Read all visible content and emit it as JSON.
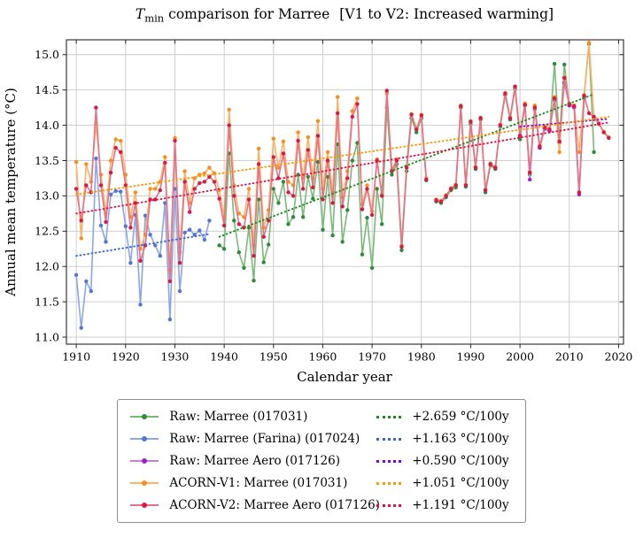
{
  "title": {
    "t_symbol": "T",
    "t_sub": "min",
    "main": " comparison for Marree",
    "bracket": "[V1 to V2: Increased warming]"
  },
  "chart_data": {
    "type": "line",
    "title": "T_min comparison for Marree  [V1 to V2: Increased warming]",
    "xlabel": "Calendar year",
    "ylabel": "Annual mean temperature (°C)",
    "xlim": [
      1908,
      2021
    ],
    "ylim": [
      10.9,
      15.21
    ],
    "xticks": [
      1910,
      1920,
      1930,
      1940,
      1950,
      1960,
      1970,
      1980,
      1990,
      2000,
      2010,
      2020
    ],
    "yticks": [
      11.0,
      11.5,
      12.0,
      12.5,
      13.0,
      13.5,
      14.0,
      14.5,
      15.0
    ],
    "grid": true,
    "grid_color": "#c9c9c9",
    "legend_position": "below-center",
    "series": [
      {
        "name": "raw-marree",
        "label": "Raw: Marree (017031)",
        "line_color": "#79ba79",
        "marker_color": "#2e8b3a",
        "trend_color": "#1f8b1f",
        "trend_label": "+2.659 °C/100y",
        "trend": {
          "x": [
            1939,
            2015
          ],
          "y": [
            12.42,
            14.44
          ]
        },
        "start_year": 1939,
        "values": [
          12.3,
          12.25,
          13.6,
          12.65,
          12.2,
          11.98,
          12.55,
          11.8,
          12.95,
          12.06,
          12.31,
          13.1,
          12.9,
          13.2,
          12.6,
          12.7,
          13.3,
          12.7,
          13.27,
          12.96,
          13.48,
          12.52,
          13.27,
          12.44,
          13.73,
          12.35,
          12.8,
          13.5,
          13.75,
          12.17,
          12.69,
          11.98,
          13.1,
          12.6,
          14.25,
          13.3,
          13.45,
          12.23,
          13.35,
          14.1,
          13.9,
          14.1,
          13.22,
          null,
          12.92,
          12.9,
          12.98,
          13.08,
          13.12,
          14.25,
          13.13,
          14.02,
          13.38,
          14.08,
          13.05,
          13.43,
          13.38,
          13.98,
          14.43,
          14.08,
          14.52,
          13.8,
          14.28,
          13.3,
          14.22,
          13.68,
          13.95,
          13.92,
          14.87,
          13.78,
          14.86,
          14.28,
          14.25,
          13.05,
          14.4,
          15.15,
          13.62
        ]
      },
      {
        "name": "raw-farina",
        "label": "Raw: Marree (Farina) (017024)",
        "line_color": "#8aa5e8",
        "marker_color": "#5276d8",
        "trend_color": "#3a62d8",
        "trend_label": "+1.163 °C/100y",
        "trend": {
          "x": [
            1910,
            1937
          ],
          "y": [
            12.15,
            12.46
          ]
        },
        "start_year": 1910,
        "values": [
          11.88,
          11.13,
          11.79,
          11.65,
          13.53,
          12.58,
          12.35,
          13.02,
          13.07,
          13.06,
          12.57,
          12.05,
          12.73,
          11.46,
          12.72,
          12.45,
          12.3,
          12.15,
          12.9,
          11.25,
          13.1,
          11.65,
          12.48,
          12.52,
          12.45,
          12.51,
          12.38,
          12.65
        ]
      },
      {
        "name": "raw-marree-aero",
        "label": "Raw: Marree Aero (017126)",
        "line_color": "#c27fe0",
        "marker_color": "#9a1fd0",
        "trend_color": "#8c00cc",
        "trend_label": "+0.590 °C/100y",
        "trend": {
          "x": [
            2000,
            2018
          ],
          "y": [
            13.98,
            14.09
          ]
        },
        "start_year": 2000,
        "values": [
          13.85,
          14.3,
          13.23,
          14.25,
          13.68,
          13.95,
          13.92,
          14.35,
          13.75,
          14.6,
          14.28,
          14.25,
          13.02,
          14.38
        ]
      },
      {
        "name": "acorn-v1-marree",
        "label": "ACORN-V1: Marree (017031)",
        "line_color": "#ffb266",
        "marker_color": "#ff8c1a",
        "trend_color": "#ff9500",
        "trend_label": "+1.051 °C/100y",
        "trend": {
          "x": [
            1910,
            2018
          ],
          "y": [
            13.02,
            14.12
          ]
        },
        "start_year": 1910,
        "values": [
          13.48,
          12.4,
          13.45,
          13.2,
          14.03,
          13.3,
          12.75,
          13.5,
          13.8,
          13.78,
          13.3,
          12.7,
          13.05,
          12.25,
          12.45,
          13.1,
          13.1,
          13.2,
          13.55,
          11.95,
          13.82,
          12.2,
          13.35,
          12.9,
          13.25,
          13.3,
          13.32,
          13.4,
          13.32,
          13.08,
          12.7,
          14.22,
          13.15,
          12.75,
          12.7,
          13.1,
          12.3,
          13.67,
          12.55,
          12.8,
          13.81,
          13.4,
          13.77,
          13.2,
          13.15,
          13.9,
          13.25,
          13.83,
          13.25,
          14.06,
          13.1,
          13.62,
          13.05,
          14.4,
          12.98,
          13.35,
          14.2,
          14.38,
          12.88,
          13.15,
          12.78,
          13.52,
          13.02,
          14.45,
          13.37,
          13.52,
          12.3,
          13.42,
          14.16,
          13.95,
          14.15,
          13.25,
          null,
          12.95,
          12.93,
          13.01,
          13.11,
          13.16,
          14.28,
          13.16,
          14.06,
          13.41,
          14.11,
          13.09,
          13.46,
          13.41,
          14.01,
          14.46,
          14.11,
          14.55,
          13.86,
          14.31,
          13.34,
          14.28,
          13.71,
          13.98,
          13.95,
          14.4,
          13.62,
          14.68,
          14.31,
          14.28,
          13.62,
          14.43,
          15.17,
          14.12,
          14.03,
          13.91,
          13.83
        ]
      },
      {
        "name": "acorn-v2-marree-aero",
        "label": "ACORN-V2: Marree Aero (017126)",
        "line_color": "#e87089",
        "marker_color": "#dc1745",
        "trend_color": "#e01245",
        "trend_label": "+1.191 °C/100y",
        "trend": {
          "x": [
            1910,
            2018
          ],
          "y": [
            12.75,
            14.04
          ]
        },
        "start_year": 1910,
        "values": [
          13.1,
          12.65,
          13.15,
          13.05,
          14.25,
          13.15,
          12.63,
          13.33,
          13.68,
          13.62,
          13.15,
          12.55,
          12.9,
          12.08,
          12.3,
          12.95,
          12.95,
          13.08,
          13.47,
          11.79,
          13.78,
          12.05,
          13.2,
          12.77,
          13.1,
          13.18,
          13.2,
          13.27,
          13.2,
          12.96,
          12.58,
          14.0,
          13.0,
          12.6,
          12.55,
          12.95,
          12.15,
          13.45,
          12.42,
          12.65,
          13.55,
          13.25,
          13.6,
          13.05,
          13.0,
          13.78,
          13.1,
          13.65,
          13.12,
          13.85,
          12.95,
          13.5,
          12.9,
          14.17,
          12.85,
          13.25,
          14.12,
          14.3,
          12.81,
          13.1,
          12.73,
          13.5,
          13.0,
          14.49,
          13.35,
          13.5,
          12.28,
          13.4,
          14.15,
          13.94,
          14.14,
          13.23,
          null,
          12.94,
          12.92,
          13.0,
          13.1,
          13.15,
          14.27,
          13.15,
          14.05,
          13.4,
          14.1,
          13.08,
          13.45,
          13.4,
          14.0,
          14.45,
          14.1,
          14.55,
          13.85,
          14.29,
          13.33,
          14.25,
          13.7,
          13.97,
          13.94,
          14.38,
          13.77,
          14.67,
          14.3,
          14.27,
          13.05,
          14.42,
          14.17,
          14.12,
          14.02,
          13.9,
          13.82
        ]
      }
    ]
  }
}
